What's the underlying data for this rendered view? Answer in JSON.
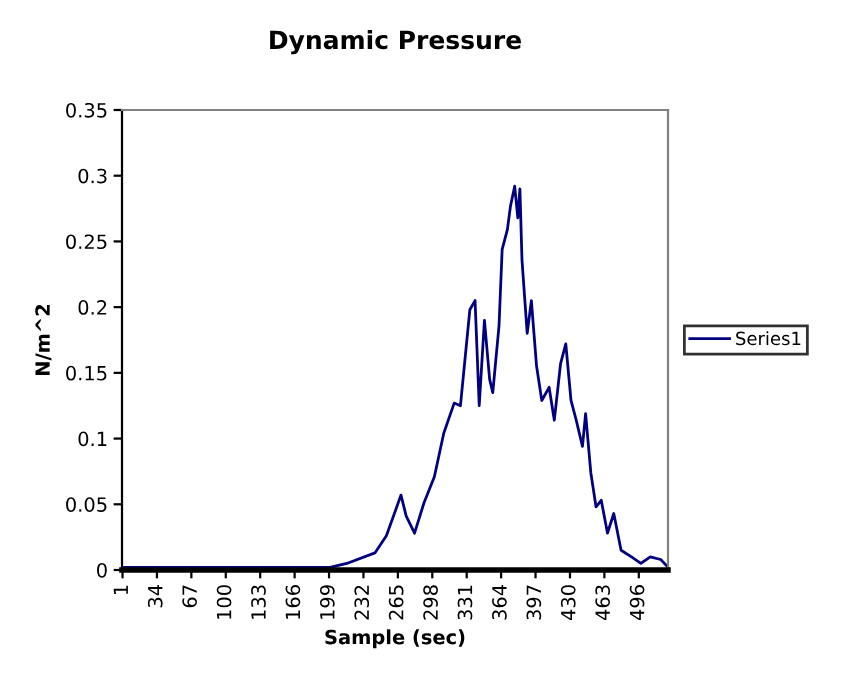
{
  "chart_data": {
    "type": "line",
    "title": "Dynamic Pressure",
    "xlabel": "Sample (sec)",
    "ylabel": "N/m^2",
    "xlim": [
      0.5,
      524
    ],
    "xticks": [
      1,
      34,
      67,
      100,
      133,
      166,
      199,
      232,
      265,
      298,
      331,
      364,
      397,
      430,
      463,
      496
    ],
    "ylim": [
      0,
      0.35
    ],
    "yticks": [
      0,
      0.05,
      0.1,
      0.15,
      0.2,
      0.25,
      0.3,
      0.35
    ],
    "grid": false,
    "legend": "right",
    "marker": "none",
    "line_style": "solid",
    "series": [
      {
        "name": "Series1",
        "color": "#000080",
        "x": [
          1,
          50,
          100,
          150,
          200,
          216,
          243,
          254,
          268,
          273,
          281,
          290,
          300,
          309,
          319,
          325,
          334,
          339,
          343,
          348,
          353,
          356,
          362,
          365,
          370,
          373,
          377,
          380,
          382,
          384,
          389,
          393,
          398,
          403,
          410,
          415,
          421,
          426,
          431,
          436,
          442,
          445,
          450,
          455,
          460,
          466,
          472,
          479,
          489,
          498,
          507,
          517,
          523
        ],
        "values": [
          0.002,
          0.002,
          0.002,
          0.002,
          0.002,
          0.005,
          0.013,
          0.026,
          0.057,
          0.041,
          0.028,
          0.051,
          0.071,
          0.104,
          0.127,
          0.125,
          0.198,
          0.205,
          0.125,
          0.19,
          0.145,
          0.135,
          0.186,
          0.244,
          0.259,
          0.277,
          0.292,
          0.268,
          0.29,
          0.236,
          0.18,
          0.205,
          0.155,
          0.129,
          0.139,
          0.114,
          0.157,
          0.172,
          0.129,
          0.114,
          0.094,
          0.119,
          0.074,
          0.048,
          0.053,
          0.028,
          0.043,
          0.015,
          0.01,
          0.005,
          0.01,
          0.008,
          0.003
        ]
      }
    ]
  }
}
